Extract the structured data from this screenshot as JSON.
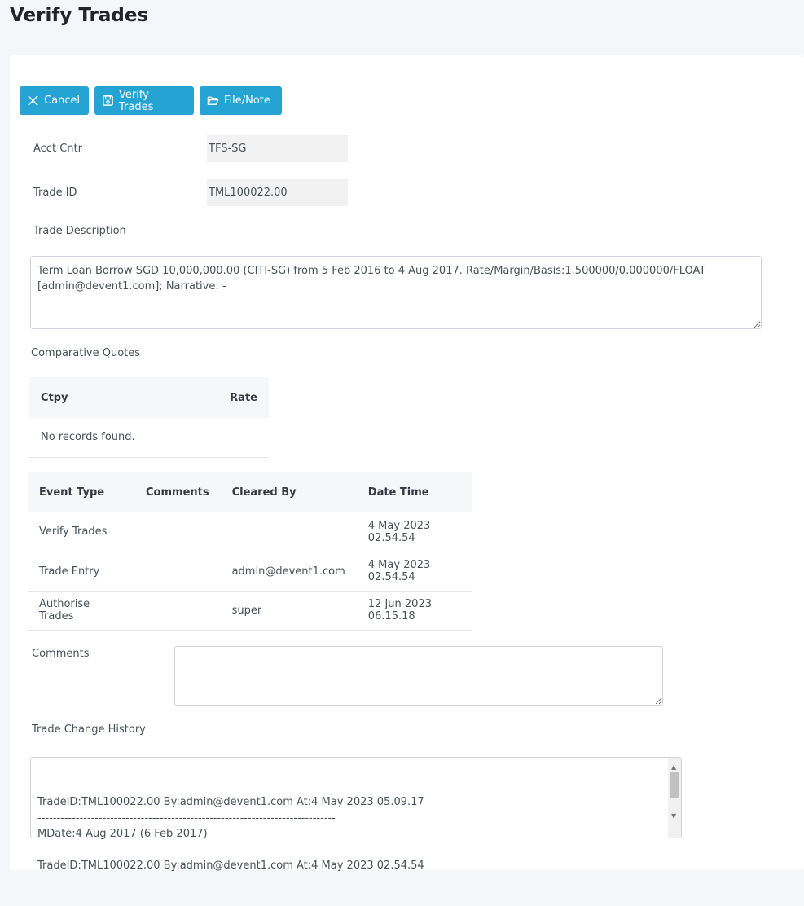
{
  "page": {
    "title": "Verify Trades"
  },
  "toolbar": {
    "cancel_label": "Cancel",
    "verify_label": "Verify Trades",
    "file_note_label": "File/Note"
  },
  "form": {
    "acct_cntr_label": "Acct Cntr",
    "acct_cntr_value": "TFS-SG",
    "trade_id_label": "Trade ID",
    "trade_id_value": "TML100022.00",
    "trade_description_label": "Trade Description",
    "trade_description_value": "Term Loan Borrow SGD 10,000,000.00 (CITI-SG) from 5 Feb 2016 to 4 Aug 2017. Rate/Margin/Basis:1.500000/0.000000/FLOAT [admin@devent1.com]; Narrative: -",
    "comparative_quotes_label": "Comparative Quotes",
    "comments_label": "Comments",
    "comments_value": "",
    "trade_change_history_label": "Trade Change History",
    "trade_change_history_value": "TradeID:TML100022.00 By:admin@devent1.com At:4 May 2023 05.09.17\n------------------------------------------------------------------------------\nMDate:4 Aug 2017 (6 Feb 2017)\n\nTradeID:TML100022.00 By:admin@devent1.com At:4 May 2023 02.54.54"
  },
  "quotes_table": {
    "headers": [
      "Ctpy",
      "Rate"
    ],
    "empty_message": "No records found."
  },
  "events_table": {
    "headers": [
      "Event Type",
      "Comments",
      "Cleared By",
      "Date Time"
    ],
    "rows": [
      [
        "Verify Trades",
        "",
        "",
        "4 May 2023 02.54.54"
      ],
      [
        "Trade Entry",
        "",
        "admin@devent1.com",
        "4 May 2023 02.54.54"
      ],
      [
        "Authorise Trades",
        "",
        "super",
        "12 Jun 2023 06.15.18"
      ]
    ]
  },
  "colors": {
    "button": "#25a4d4",
    "page_bg": "#f4f6f9"
  }
}
